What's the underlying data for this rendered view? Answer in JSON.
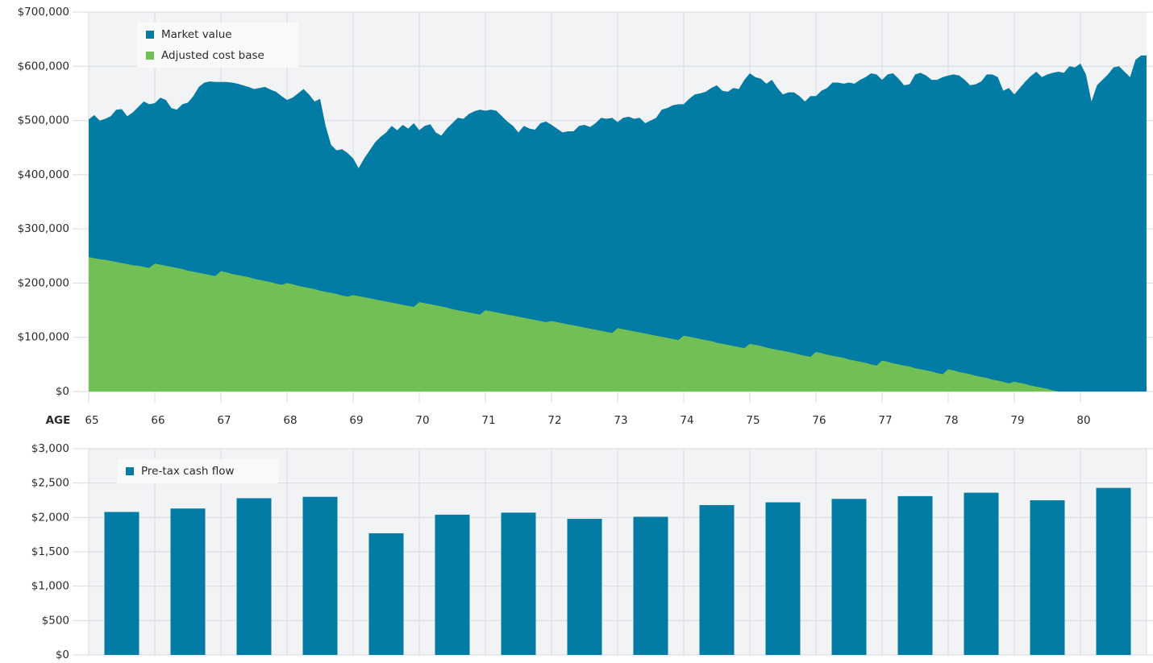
{
  "chart_data": [
    {
      "type": "area",
      "x_label": "AGE",
      "xlim": [
        65,
        81
      ],
      "xticks": [
        65,
        66,
        67,
        68,
        69,
        70,
        71,
        72,
        73,
        74,
        75,
        76,
        77,
        78,
        79,
        80
      ],
      "ylim": [
        0,
        700000
      ],
      "yticks": [
        {
          "value": 0,
          "label": "$0"
        },
        {
          "value": 100000,
          "label": "$100,000"
        },
        {
          "value": 200000,
          "label": "$200,000"
        },
        {
          "value": 300000,
          "label": "$300,000"
        },
        {
          "value": 400000,
          "label": "$400,000"
        },
        {
          "value": 500000,
          "label": "$500,000"
        },
        {
          "value": 600000,
          "label": "$600,000"
        },
        {
          "value": 700000,
          "label": "$700,000"
        }
      ],
      "grid": true,
      "legend": "top-left",
      "x": [
        65,
        65.083,
        65.167,
        65.25,
        65.333,
        65.417,
        65.5,
        65.583,
        65.667,
        65.75,
        65.833,
        65.917,
        66,
        66.083,
        66.167,
        66.25,
        66.333,
        66.417,
        66.5,
        66.583,
        66.667,
        66.75,
        66.833,
        66.917,
        67,
        67.083,
        67.167,
        67.25,
        67.333,
        67.417,
        67.5,
        67.583,
        67.667,
        67.75,
        67.833,
        67.917,
        68,
        68.083,
        68.167,
        68.25,
        68.333,
        68.417,
        68.5,
        68.583,
        68.667,
        68.75,
        68.833,
        68.917,
        69,
        69.083,
        69.167,
        69.25,
        69.333,
        69.417,
        69.5,
        69.583,
        69.667,
        69.75,
        69.833,
        69.917,
        70,
        70.083,
        70.167,
        70.25,
        70.333,
        70.417,
        70.5,
        70.583,
        70.667,
        70.75,
        70.833,
        70.917,
        71,
        71.083,
        71.167,
        71.25,
        71.333,
        71.417,
        71.5,
        71.583,
        71.667,
        71.75,
        71.833,
        71.917,
        72,
        72.083,
        72.167,
        72.25,
        72.333,
        72.417,
        72.5,
        72.583,
        72.667,
        72.75,
        72.833,
        72.917,
        73,
        73.083,
        73.167,
        73.25,
        73.333,
        73.417,
        73.5,
        73.583,
        73.667,
        73.75,
        73.833,
        73.917,
        74,
        74.083,
        74.167,
        74.25,
        74.333,
        74.417,
        74.5,
        74.583,
        74.667,
        74.75,
        74.833,
        74.917,
        75,
        75.083,
        75.167,
        75.25,
        75.333,
        75.417,
        75.5,
        75.583,
        75.667,
        75.75,
        75.833,
        75.917,
        76,
        76.083,
        76.167,
        76.25,
        76.333,
        76.417,
        76.5,
        76.583,
        76.667,
        76.75,
        76.833,
        76.917,
        77,
        77.083,
        77.167,
        77.25,
        77.333,
        77.417,
        77.5,
        77.583,
        77.667,
        77.75,
        77.833,
        77.917,
        78,
        78.083,
        78.167,
        78.25,
        78.333,
        78.417,
        78.5,
        78.583,
        78.667,
        78.75,
        78.833,
        78.917,
        79,
        79.083,
        79.167,
        79.25,
        79.333,
        79.417,
        79.5,
        79.583,
        79.667,
        79.75,
        79.833,
        79.917,
        80,
        80.083,
        80.167,
        80.25,
        80.333,
        80.417,
        80.5,
        80.583,
        80.667,
        80.75,
        80.833,
        80.917,
        81
      ],
      "series": [
        {
          "name": "Market value",
          "color": "#027ca5",
          "values": [
            502000,
            510000,
            500000,
            503000,
            508000,
            520000,
            521000,
            508000,
            515000,
            525000,
            535000,
            530000,
            532000,
            542000,
            538000,
            523000,
            520000,
            530000,
            533000,
            545000,
            562000,
            570000,
            572000,
            571000,
            571000,
            571000,
            570000,
            568000,
            565000,
            562000,
            558000,
            560000,
            562000,
            557000,
            553000,
            545000,
            538000,
            542000,
            550000,
            558000,
            548000,
            535000,
            540000,
            490000,
            455000,
            445000,
            447000,
            440000,
            430000,
            412000,
            430000,
            445000,
            460000,
            470000,
            478000,
            490000,
            482000,
            492000,
            485000,
            495000,
            482000,
            490000,
            493000,
            478000,
            472000,
            485000,
            495000,
            505000,
            503000,
            512000,
            517000,
            520000,
            518000,
            520000,
            518000,
            508000,
            498000,
            490000,
            478000,
            490000,
            485000,
            483000,
            495000,
            498000,
            492000,
            485000,
            478000,
            480000,
            480000,
            490000,
            492000,
            488000,
            495000,
            505000,
            503000,
            505000,
            497000,
            505000,
            507000,
            503000,
            505000,
            495000,
            500000,
            505000,
            520000,
            523000,
            528000,
            530000,
            530000,
            540000,
            548000,
            550000,
            553000,
            560000,
            565000,
            555000,
            553000,
            560000,
            558000,
            575000,
            587000,
            580000,
            577000,
            568000,
            575000,
            560000,
            548000,
            552000,
            552000,
            545000,
            535000,
            545000,
            545000,
            555000,
            560000,
            570000,
            570000,
            568000,
            570000,
            568000,
            575000,
            580000,
            587000,
            585000,
            575000,
            585000,
            587000,
            577000,
            565000,
            567000,
            585000,
            588000,
            583000,
            575000,
            575000,
            580000,
            583000,
            585000,
            583000,
            575000,
            565000,
            567000,
            572000,
            585000,
            585000,
            580000,
            555000,
            560000,
            548000,
            560000,
            572000,
            582000,
            590000,
            580000,
            585000,
            588000,
            590000,
            588000,
            600000,
            598000,
            605000,
            585000,
            535000,
            565000,
            575000,
            585000,
            598000,
            600000,
            590000,
            580000,
            612000,
            620000,
            620000
          ]
        },
        {
          "name": "Adjusted cost base",
          "color": "#72bf55",
          "values": [
            248000,
            246000,
            244000,
            243000,
            241000,
            239000,
            237000,
            235000,
            233000,
            232000,
            230000,
            228000,
            236000,
            234000,
            232000,
            230000,
            228000,
            226000,
            223000,
            221000,
            219000,
            217000,
            215000,
            213000,
            222000,
            220000,
            217000,
            215000,
            213000,
            211000,
            208000,
            206000,
            204000,
            202000,
            199000,
            197000,
            200000,
            198000,
            195000,
            193000,
            191000,
            189000,
            186000,
            184000,
            182000,
            180000,
            177000,
            175000,
            178000,
            176000,
            174000,
            172000,
            170000,
            168000,
            166000,
            164000,
            162000,
            160000,
            158000,
            156000,
            165000,
            163000,
            161000,
            159000,
            157000,
            155000,
            152000,
            150000,
            148000,
            146000,
            144000,
            142000,
            150000,
            148000,
            146000,
            144000,
            142000,
            140000,
            138000,
            136000,
            134000,
            132000,
            130000,
            128000,
            130000,
            128000,
            126000,
            124000,
            122000,
            120000,
            118000,
            116000,
            114000,
            112000,
            110000,
            108000,
            117000,
            115000,
            113000,
            111000,
            109000,
            107000,
            105000,
            103000,
            101000,
            99000,
            97000,
            95000,
            103000,
            101000,
            99000,
            97000,
            95000,
            93000,
            90000,
            88000,
            86000,
            84000,
            82000,
            80000,
            88000,
            86000,
            84000,
            81000,
            79000,
            77000,
            75000,
            73000,
            71000,
            68000,
            66000,
            64000,
            73000,
            71000,
            68000,
            66000,
            64000,
            62000,
            59000,
            57000,
            55000,
            53000,
            50000,
            48000,
            57000,
            55000,
            52000,
            50000,
            48000,
            46000,
            43000,
            41000,
            39000,
            37000,
            34000,
            32000,
            41000,
            39000,
            36000,
            34000,
            32000,
            29000,
            27000,
            25000,
            22000,
            20000,
            18000,
            15000,
            18000,
            16000,
            14000,
            11000,
            9000,
            7000,
            5000,
            2000,
            0,
            0,
            0,
            0,
            0,
            0,
            0,
            0,
            0,
            0,
            0,
            0,
            0,
            0,
            0,
            0,
            0
          ]
        }
      ]
    },
    {
      "type": "bar",
      "ylim": [
        0,
        3000
      ],
      "yticks": [
        {
          "value": 0,
          "label": "$0"
        },
        {
          "value": 500,
          "label": "$500"
        },
        {
          "value": 1000,
          "label": "$1,000"
        },
        {
          "value": 1500,
          "label": "$1,500"
        },
        {
          "value": 2000,
          "label": "$2,000"
        },
        {
          "value": 2500,
          "label": "$2,500"
        },
        {
          "value": 3000,
          "label": "$3,000"
        }
      ],
      "grid": true,
      "legend": "top-left",
      "series": [
        {
          "name": "Pre-tax cash flow",
          "color": "#027ca5",
          "values": [
            2080,
            2130,
            2280,
            2300,
            1770,
            2040,
            2070,
            1980,
            2010,
            2180,
            2220,
            2270,
            2310,
            2360,
            2250,
            2430
          ]
        }
      ]
    }
  ]
}
